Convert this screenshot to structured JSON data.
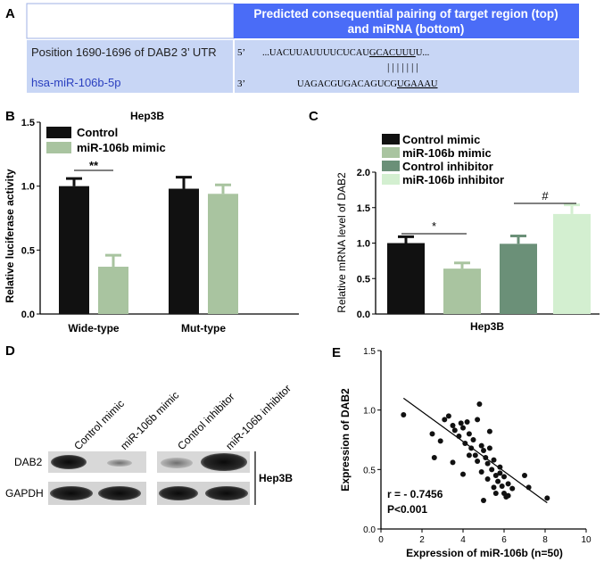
{
  "panel_letters": [
    "A",
    "B",
    "C",
    "D",
    "E"
  ],
  "panelA": {
    "header": [
      "Predicted consequential pairing of target region (top)",
      "and miRNA (bottom)"
    ],
    "row1_label": "Position 1690-1696 of DAB2 3’ UTR",
    "row1_prime": "5’",
    "row1_seq_pre": "...UACUUAUUUUCUCAU",
    "row1_seq_match": "GCACUUU",
    "row1_seq_post": "U...",
    "pair_bars": "| | | | | | |",
    "row2_label": "hsa-miR-106b-5p",
    "row2_prime": "3’",
    "row2_seq_pre": "UAGACGUGACAGUCG",
    "row2_seq_match": "UGAAAU",
    "colors": {
      "header_bg": "#4a6cf7",
      "row_bg": "#c8d6f5",
      "mirna_text": "#2a3fbf"
    }
  },
  "panelD": {
    "lanes_left": [
      "Control mimic",
      "miR-106b mimic"
    ],
    "lanes_right": [
      "Control inhibitor",
      "miR-106b inhibitor"
    ],
    "rows": [
      "DAB2",
      "GAPDH"
    ],
    "cell_label": "Hep3B"
  },
  "chart_data": [
    {
      "id": "B",
      "type": "bar",
      "title": "Hep3B",
      "xlabel": "",
      "ylabel": "Relative luciferase activity",
      "categories": [
        "Wide-type",
        "Mut-type"
      ],
      "series": [
        {
          "name": "Control",
          "color": "#111111",
          "values": [
            1.0,
            0.98
          ],
          "errors": [
            0.06,
            0.09
          ]
        },
        {
          "name": "miR-106b mimic",
          "color": "#a9c4a0",
          "values": [
            0.37,
            0.94
          ],
          "errors": [
            0.09,
            0.07
          ]
        }
      ],
      "ylim": [
        0,
        1.5
      ],
      "yticks": [
        0.0,
        0.5,
        1.0,
        1.5
      ],
      "annotations": [
        {
          "text": "**",
          "category": 0
        }
      ],
      "legend": "top-left"
    },
    {
      "id": "C",
      "type": "bar",
      "title": "",
      "xlabel": "Hep3B",
      "ylabel": "Relative mRNA level of DAB2",
      "categories": [
        "Control mimic",
        "miR-106b mimic",
        "Control inhibitor",
        "miR-106b inhibitor"
      ],
      "series": [
        {
          "name": "Hep3B",
          "colors": [
            "#111111",
            "#a9c4a0",
            "#6b9078",
            "#d3efd0"
          ],
          "values": [
            1.0,
            0.64,
            0.99,
            1.41
          ],
          "errors": [
            0.09,
            0.08,
            0.11,
            0.13
          ]
        }
      ],
      "ylim": [
        0,
        2.0
      ],
      "yticks": [
        0.0,
        0.5,
        1.0,
        1.5,
        2.0
      ],
      "annotations": [
        {
          "text": "*",
          "between": [
            0,
            1
          ]
        },
        {
          "text": "#",
          "between": [
            2,
            3
          ]
        }
      ],
      "legend": "top"
    },
    {
      "id": "E",
      "type": "scatter",
      "title": "",
      "xlabel": "Expression of miR-106b (n=50)",
      "ylabel": "Expression of DAB2",
      "xlim": [
        0,
        10
      ],
      "ylim": [
        0,
        1.5
      ],
      "xticks": [
        0,
        2,
        4,
        6,
        8,
        10
      ],
      "yticks": [
        0.0,
        0.5,
        1.0,
        1.5
      ],
      "stats": [
        "r = - 0.7456",
        "P<0.001"
      ],
      "fit_line": {
        "x": [
          1.1,
          8.1
        ],
        "y": [
          1.1,
          0.22
        ]
      },
      "points": [
        [
          1.1,
          0.96
        ],
        [
          2.5,
          0.8
        ],
        [
          2.9,
          0.74
        ],
        [
          2.6,
          0.6
        ],
        [
          3.1,
          0.92
        ],
        [
          3.3,
          0.95
        ],
        [
          3.5,
          0.87
        ],
        [
          3.6,
          0.83
        ],
        [
          3.8,
          0.78
        ],
        [
          3.9,
          0.89
        ],
        [
          4.0,
          0.85
        ],
        [
          4.2,
          0.9
        ],
        [
          4.3,
          0.8
        ],
        [
          4.1,
          0.72
        ],
        [
          4.4,
          0.68
        ],
        [
          4.5,
          0.75
        ],
        [
          4.6,
          0.62
        ],
        [
          4.7,
          0.92
        ],
        [
          4.8,
          1.05
        ],
        [
          4.9,
          0.7
        ],
        [
          5.0,
          0.66
        ],
        [
          5.1,
          0.6
        ],
        [
          5.2,
          0.55
        ],
        [
          5.3,
          0.68
        ],
        [
          5.4,
          0.5
        ],
        [
          5.5,
          0.58
        ],
        [
          5.6,
          0.45
        ],
        [
          5.7,
          0.4
        ],
        [
          5.8,
          0.52
        ],
        [
          5.9,
          0.36
        ],
        [
          6.0,
          0.3
        ],
        [
          6.1,
          0.27
        ],
        [
          6.2,
          0.38
        ],
        [
          5.0,
          0.24
        ],
        [
          4.0,
          0.46
        ],
        [
          4.7,
          0.57
        ],
        [
          3.5,
          0.56
        ],
        [
          5.3,
          0.82
        ],
        [
          5.8,
          0.47
        ],
        [
          6.4,
          0.34
        ],
        [
          6.0,
          0.44
        ],
        [
          7.0,
          0.45
        ],
        [
          7.2,
          0.35
        ],
        [
          8.1,
          0.26
        ],
        [
          5.5,
          0.35
        ],
        [
          4.3,
          0.62
        ],
        [
          4.9,
          0.48
        ],
        [
          5.6,
          0.3
        ],
        [
          6.2,
          0.28
        ],
        [
          5.2,
          0.42
        ]
      ]
    }
  ]
}
